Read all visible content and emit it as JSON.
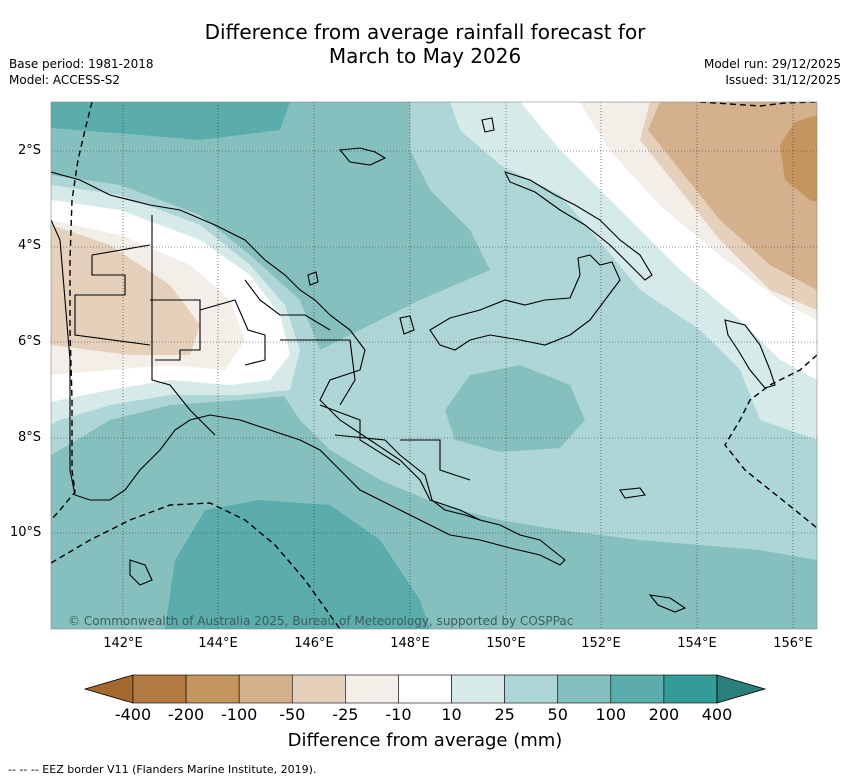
{
  "title": {
    "line1": "Difference from average rainfall forecast for",
    "line2": "March to May 2026"
  },
  "meta_left": {
    "base_period": "Base period: 1981-2018",
    "model": "Model: ACCESS-S2"
  },
  "meta_right": {
    "model_run": "Model run: 29/12/2025",
    "issued": "Issued: 31/12/2025"
  },
  "map": {
    "latitude_labels": [
      "2°S",
      "4°S",
      "6°S",
      "8°S",
      "10°S"
    ],
    "longitude_labels": [
      "142°E",
      "144°E",
      "146°E",
      "148°E",
      "150°E",
      "152°E",
      "154°E",
      "156°E"
    ],
    "copyright": "© Commonwealth of Australia 2025, Bureau of Meteorology, supported by COSPPac"
  },
  "colorbar": {
    "title": "Difference from average (mm)",
    "tick_labels": [
      "-400",
      "-200",
      "-100",
      "-50",
      "-25",
      "-10",
      "10",
      "25",
      "50",
      "100",
      "200",
      "400"
    ],
    "colors": [
      "#a5682f",
      "#b07a42",
      "#c4955f",
      "#d4b08c",
      "#e5d0bc",
      "#f3eee7",
      "#ffffff",
      "#d6eaea",
      "#afd6d6",
      "#85c0bf",
      "#5aadab",
      "#339c98",
      "#2a7f7c"
    ]
  },
  "footnote": "-- -- -- EEZ border V11 (Flanders Marine Institute, 2019)."
}
